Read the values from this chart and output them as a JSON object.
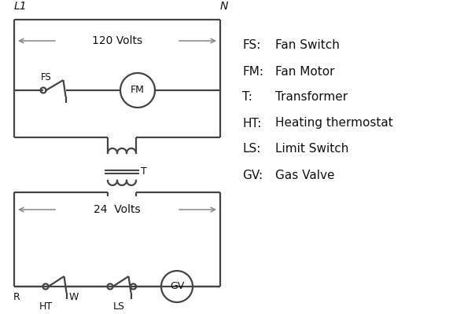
{
  "bg_color": "#ffffff",
  "line_color": "#444444",
  "text_color": "#111111",
  "legend_items": [
    [
      "FS:",
      "Fan Switch"
    ],
    [
      "FM:",
      "Fan Motor"
    ],
    [
      "T:",
      "Transformer"
    ],
    [
      "HT:",
      "Heating thermostat"
    ],
    [
      "LS:",
      "Limit Switch"
    ],
    [
      "GV:",
      "Gas Valve"
    ]
  ],
  "L1_label": "L1",
  "N_label": "N",
  "volts120_label": "120 Volts",
  "volts24_label": "24  Volts",
  "T_label": "T",
  "FS_label": "FS",
  "FM_label": "FM",
  "R_label": "R",
  "W_label": "W",
  "HT_label": "HT",
  "LS_label": "LS",
  "GV_label": "GV"
}
